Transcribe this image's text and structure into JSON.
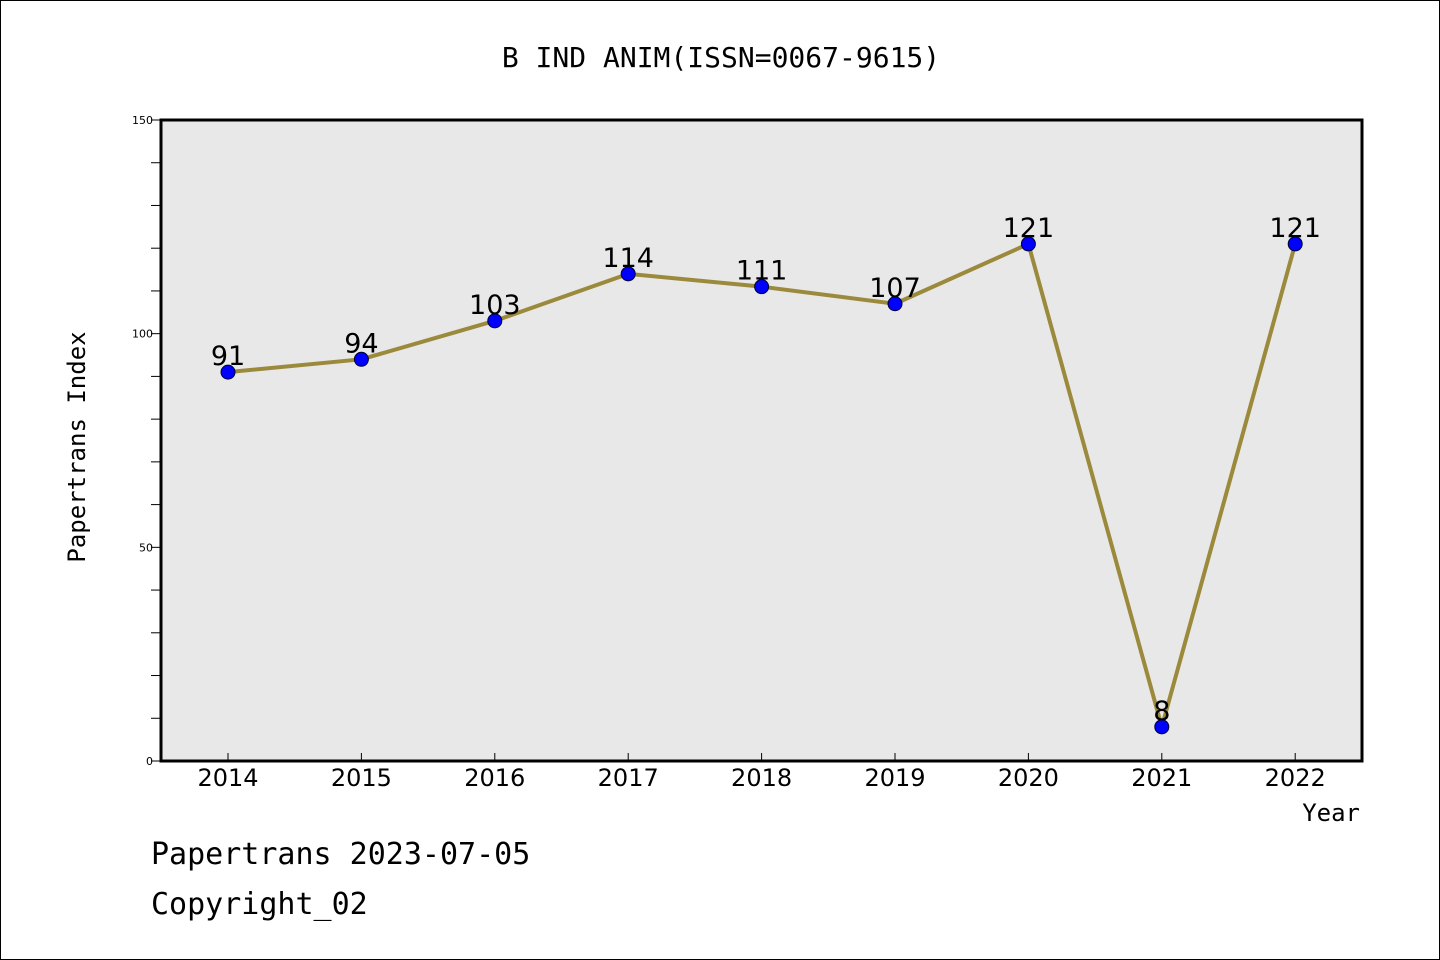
{
  "chart_data": {
    "type": "line",
    "title": "B IND ANIM(ISSN=0067-9615)",
    "xlabel": "Year",
    "ylabel": "Papertrans Index",
    "ylim": [
      0,
      150
    ],
    "yticks": [
      0,
      50,
      100,
      150
    ],
    "grid": false,
    "categories": [
      "2014",
      "2015",
      "2016",
      "2017",
      "2018",
      "2019",
      "2020",
      "2021",
      "2022"
    ],
    "series": [
      {
        "values": [
          91,
          94,
          103,
          114,
          111,
          107,
          121,
          8,
          121
        ]
      }
    ],
    "colors": {
      "line": "#9b8a3c",
      "marker": "#0000ff",
      "plot_background": "#e8e8e8"
    }
  },
  "footer": {
    "date_line": "Papertrans 2023-07-05",
    "copyright": "Copyright_02"
  }
}
